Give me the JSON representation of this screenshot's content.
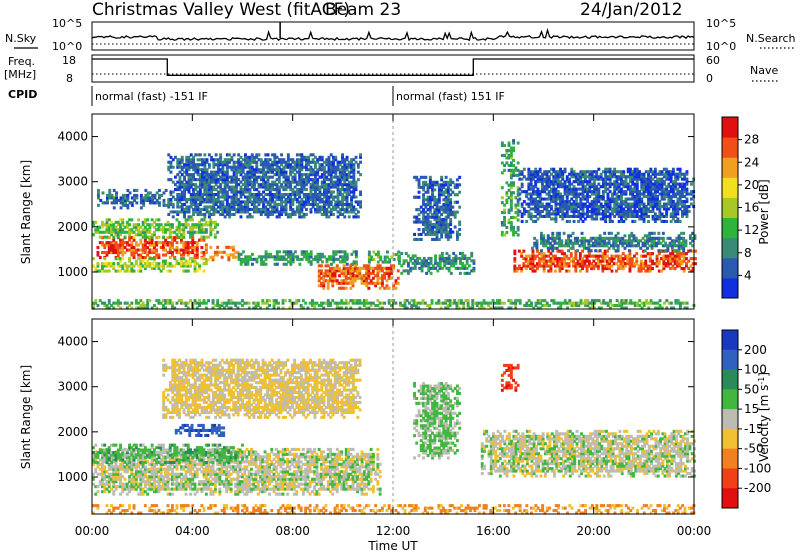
{
  "header": {
    "station": "Christmas Valley West (fitACF)",
    "beam": "Beam 23",
    "date": "24/Jan/2012"
  },
  "strips": {
    "nsky_label": "N.Sky",
    "nsearch_label": "N.Search",
    "noise_ticks": [
      "10^5",
      "10^0"
    ],
    "freq_label_1": "Freq.",
    "freq_label_2": "[MHz]",
    "freq_ticks": [
      "18",
      "8"
    ],
    "nave_label": "Nave",
    "nave_ticks": [
      "60",
      "0"
    ],
    "cpid_label": "CPID",
    "cpid_segments": [
      {
        "start_hour": 0,
        "end_hour": 12,
        "text": "normal (fast) -151 IF"
      },
      {
        "start_hour": 12,
        "end_hour": 24,
        "text": "normal (fast) 151 IF"
      }
    ],
    "freq_steps": [
      {
        "start_hour": 0,
        "end_hour": 3.0,
        "mhz": 16.5
      },
      {
        "start_hour": 3.0,
        "end_hour": 15.2,
        "mhz": 10.5
      },
      {
        "start_hour": 15.2,
        "end_hour": 24,
        "mhz": 16.5
      }
    ]
  },
  "chart_data": [
    {
      "type": "heatmap",
      "panel": "power",
      "ylabel": "Slant Range [km]",
      "ylim": [
        180,
        4500
      ],
      "yticks": [
        1000,
        2000,
        3000,
        4000
      ],
      "xlim": [
        0,
        24
      ],
      "colorbar": {
        "label": "Power [dB]",
        "ticks": [
          4,
          8,
          12,
          16,
          20,
          24,
          28
        ],
        "range": [
          0,
          32
        ],
        "colors": [
          "#1030e0",
          "#2a5ab0",
          "#3a8a78",
          "#2eb43c",
          "#a8c828",
          "#f0e020",
          "#f0a020",
          "#f05018",
          "#e01010"
        ]
      },
      "regions": [
        {
          "t0": 0.0,
          "t1": 4.5,
          "r0": 1300,
          "r1": 1750,
          "level": 27
        },
        {
          "t0": 4.5,
          "t1": 5.8,
          "r0": 1250,
          "r1": 1550,
          "level": 24
        },
        {
          "t0": 0.0,
          "t1": 4.5,
          "r0": 1000,
          "r1": 1300,
          "level": 16
        },
        {
          "t0": 0.0,
          "t1": 5.0,
          "r0": 1750,
          "r1": 2150,
          "level": 14
        },
        {
          "t0": 5.8,
          "t1": 10.5,
          "r0": 1150,
          "r1": 1450,
          "level": 10
        },
        {
          "t0": 9.0,
          "t1": 12.2,
          "r0": 620,
          "r1": 1150,
          "level": 26
        },
        {
          "t0": 11.0,
          "t1": 12.2,
          "r0": 1200,
          "r1": 1450,
          "level": 12
        },
        {
          "t0": 12.2,
          "t1": 15.2,
          "r0": 950,
          "r1": 1400,
          "level": 9
        },
        {
          "t0": 0.2,
          "t1": 3.0,
          "r0": 2400,
          "r1": 2800,
          "level": 7
        },
        {
          "t0": 3.0,
          "t1": 10.7,
          "r0": 2200,
          "r1": 3600,
          "level": 6
        },
        {
          "t0": 12.8,
          "t1": 14.6,
          "r0": 1700,
          "r1": 3100,
          "level": 6
        },
        {
          "t0": 16.3,
          "t1": 17.0,
          "r0": 1800,
          "r1": 3900,
          "level": 11
        },
        {
          "t0": 16.8,
          "t1": 24.0,
          "r0": 1000,
          "r1": 1450,
          "level": 27
        },
        {
          "t0": 17.5,
          "t1": 24.0,
          "r0": 1450,
          "r1": 1850,
          "level": 8
        },
        {
          "t0": 17.0,
          "t1": 24.0,
          "r0": 2100,
          "r1": 3300,
          "level": 5
        },
        {
          "t0": 0.0,
          "t1": 24.0,
          "r0": 180,
          "r1": 400,
          "level": 12
        }
      ]
    },
    {
      "type": "heatmap",
      "panel": "velocity",
      "xlabel": "Time UT",
      "ylabel": "Slant Range [km]",
      "ylim": [
        180,
        4500
      ],
      "yticks": [
        1000,
        2000,
        3000,
        4000
      ],
      "xlim": [
        0,
        24
      ],
      "xtick_labels": [
        "00:00",
        "04:00",
        "08:00",
        "12:00",
        "16:00",
        "20:00",
        "00:00"
      ],
      "colorbar": {
        "label": "Velocity [m s^-1]",
        "ticks": [
          "200",
          "100",
          "50",
          "15",
          "-15",
          "-50",
          "-100",
          "-200"
        ],
        "colors": [
          "#1838c0",
          "#3060c0",
          "#2a8a58",
          "#40b840",
          "#bcbcb4",
          "#f0c030",
          "#f08020",
          "#f04018",
          "#e01010"
        ]
      },
      "regions": [
        {
          "t0": 0.0,
          "t1": 11.5,
          "r0": 600,
          "r1": 1600,
          "velocity": 0
        },
        {
          "t0": 15.5,
          "t1": 24.0,
          "r0": 1000,
          "r1": 2000,
          "velocity": 0
        },
        {
          "t0": 0.0,
          "t1": 6.0,
          "r0": 1300,
          "r1": 1700,
          "velocity": 30
        },
        {
          "t0": 3.3,
          "t1": 5.2,
          "r0": 1900,
          "r1": 2150,
          "velocity": 180
        },
        {
          "t0": 2.8,
          "t1": 10.7,
          "r0": 2300,
          "r1": 3600,
          "velocity": -20
        },
        {
          "t0": 16.3,
          "t1": 17.0,
          "r0": 2900,
          "r1": 3500,
          "velocity": -180
        },
        {
          "t0": 0.0,
          "t1": 24.0,
          "r0": 180,
          "r1": 350,
          "velocity": -60
        },
        {
          "t0": 12.8,
          "t1": 14.6,
          "r0": 1400,
          "r1": 3100,
          "velocity": 20
        }
      ]
    }
  ]
}
